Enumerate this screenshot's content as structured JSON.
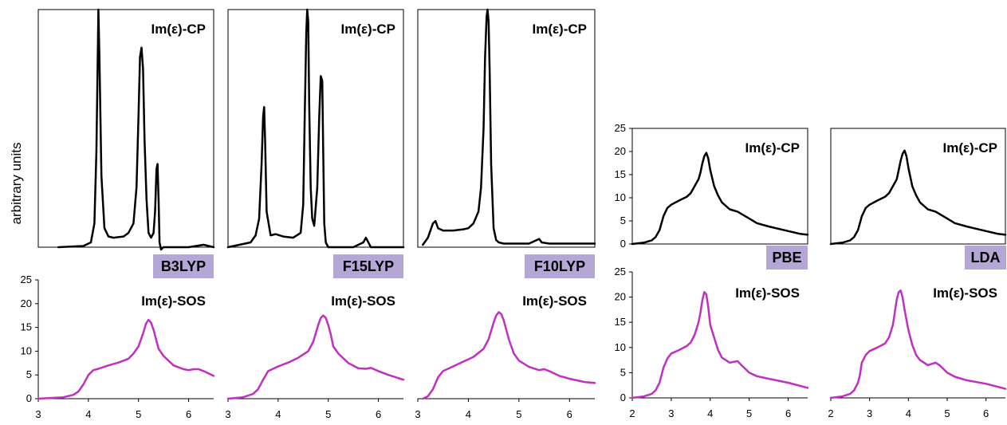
{
  "ylabel": "arbitrary units",
  "colors": {
    "cp": "#000000",
    "sos": "#c030c0",
    "label_bg": "#b4a7d6"
  },
  "chart_data": [
    {
      "type": "line",
      "title": "Im(ε)-CP",
      "method": "B3LYP",
      "axes": false,
      "xlim": [
        3,
        6.5
      ],
      "ylim": [
        0,
        1
      ],
      "x": [
        3.4,
        3.9,
        4.05,
        4.12,
        4.16,
        4.19,
        4.2,
        4.22,
        4.26,
        4.32,
        4.4,
        4.5,
        4.7,
        4.8,
        4.9,
        4.96,
        5.0,
        5.03,
        5.06,
        5.09,
        5.12,
        5.16,
        5.2,
        5.25,
        5.3,
        5.33,
        5.36,
        5.38,
        5.4,
        5.42,
        5.45,
        5.5,
        6.0,
        6.3,
        6.5
      ],
      "y": [
        0,
        0.005,
        0.02,
        0.1,
        0.4,
        0.85,
        1.0,
        0.8,
        0.3,
        0.08,
        0.045,
        0.04,
        0.045,
        0.06,
        0.1,
        0.25,
        0.55,
        0.8,
        0.84,
        0.75,
        0.45,
        0.2,
        0.06,
        0.04,
        0.06,
        0.15,
        0.33,
        0.35,
        0.2,
        0.02,
        -0.01,
        0,
        0,
        0.01,
        0
      ]
    },
    {
      "type": "line",
      "title": "Im(ε)-CP",
      "method": "F15LYP",
      "axes": false,
      "xlim": [
        3,
        6.5
      ],
      "ylim": [
        0,
        1
      ],
      "x": [
        3.0,
        3.45,
        3.55,
        3.62,
        3.67,
        3.7,
        3.72,
        3.74,
        3.77,
        3.85,
        3.95,
        4.1,
        4.3,
        4.45,
        4.5,
        4.53,
        4.56,
        4.58,
        4.6,
        4.62,
        4.65,
        4.68,
        4.72,
        4.78,
        4.82,
        4.85,
        4.88,
        4.9,
        4.92,
        4.95,
        5.0,
        5.1,
        5.5,
        5.7,
        5.75,
        5.8,
        5.85,
        6.5
      ],
      "y": [
        0,
        0.02,
        0.05,
        0.12,
        0.35,
        0.55,
        0.59,
        0.45,
        0.15,
        0.05,
        0.055,
        0.045,
        0.04,
        0.06,
        0.18,
        0.55,
        0.9,
        1.0,
        0.95,
        0.6,
        0.25,
        0.12,
        0.09,
        0.25,
        0.55,
        0.72,
        0.7,
        0.4,
        0.1,
        0.02,
        0,
        0,
        0,
        0.02,
        0.04,
        0.02,
        0,
        0
      ]
    },
    {
      "type": "line",
      "title": "Im(ε)-CP",
      "method": "F10LYP",
      "axes": false,
      "xlim": [
        3,
        6.5
      ],
      "ylim": [
        0,
        1
      ],
      "x": [
        3.1,
        3.2,
        3.3,
        3.35,
        3.4,
        3.5,
        3.7,
        3.9,
        4.0,
        4.1,
        4.2,
        4.25,
        4.3,
        4.33,
        4.36,
        4.38,
        4.4,
        4.42,
        4.45,
        4.5,
        4.55,
        4.6,
        4.7,
        4.9,
        5.2,
        5.35,
        5.4,
        5.45,
        5.6,
        6.5
      ],
      "y": [
        0.01,
        0.04,
        0.1,
        0.11,
        0.08,
        0.07,
        0.07,
        0.075,
        0.08,
        0.1,
        0.15,
        0.25,
        0.5,
        0.8,
        0.97,
        1.0,
        0.95,
        0.75,
        0.35,
        0.08,
        0.03,
        0.02,
        0.015,
        0.015,
        0.015,
        0.03,
        0.035,
        0.02,
        0.015,
        0.015
      ]
    },
    {
      "type": "line",
      "title": "Im(ε)-CP",
      "method": "PBE",
      "axes": true,
      "xlim": [
        2,
        6.5
      ],
      "ylim": [
        0,
        25
      ],
      "yticks": [
        "0",
        "5",
        "10",
        "15",
        "20",
        "25"
      ],
      "xticks": [],
      "x": [
        2.0,
        2.3,
        2.5,
        2.6,
        2.7,
        2.75,
        2.8,
        2.9,
        3.0,
        3.2,
        3.4,
        3.5,
        3.6,
        3.7,
        3.75,
        3.8,
        3.85,
        3.9,
        3.95,
        4.0,
        4.1,
        4.2,
        4.3,
        4.5,
        4.7,
        4.8,
        5.0,
        5.2,
        5.5,
        6.0,
        6.3,
        6.5
      ],
      "y": [
        0,
        0.3,
        0.8,
        1.5,
        3,
        4.5,
        6,
        7.8,
        8.5,
        9.4,
        10.2,
        11,
        12.5,
        14,
        15.5,
        17.5,
        19,
        19.7,
        18.5,
        16,
        12.5,
        10.5,
        9,
        7.5,
        7,
        6.5,
        5.5,
        4.5,
        3.8,
        2.8,
        2.2,
        2
      ]
    },
    {
      "type": "line",
      "title": "Im(ε)-CP",
      "method": "LDA",
      "axes": false,
      "xlim": [
        2,
        6.5
      ],
      "ylim": [
        0,
        25
      ],
      "x": [
        2.0,
        2.3,
        2.5,
        2.6,
        2.7,
        2.75,
        2.8,
        2.9,
        3.0,
        3.2,
        3.4,
        3.5,
        3.6,
        3.7,
        3.75,
        3.8,
        3.85,
        3.9,
        3.95,
        4.0,
        4.1,
        4.2,
        4.3,
        4.5,
        4.7,
        4.8,
        5.0,
        5.2,
        5.5,
        6.0,
        6.3,
        6.5
      ],
      "y": [
        0,
        0.3,
        0.8,
        1.5,
        3,
        4.5,
        6,
        7.8,
        8.5,
        9.4,
        10.2,
        11,
        12.5,
        14,
        16,
        18,
        19.5,
        20.2,
        19,
        16.5,
        12.5,
        10.5,
        9,
        7.5,
        7,
        6.5,
        5.5,
        4.5,
        3.8,
        2.8,
        2.2,
        2
      ]
    },
    {
      "type": "line",
      "title": "Im(ε)-SOS",
      "axes": true,
      "xlim": [
        3,
        6.5
      ],
      "ylim": [
        0,
        25
      ],
      "yticks": [
        "0",
        "5",
        "10",
        "15",
        "20",
        "25"
      ],
      "xticks": [
        "3",
        "4",
        "5",
        "6"
      ],
      "x": [
        3.0,
        3.5,
        3.7,
        3.8,
        3.9,
        4.0,
        4.1,
        4.2,
        4.4,
        4.6,
        4.8,
        4.9,
        5.0,
        5.1,
        5.15,
        5.2,
        5.25,
        5.3,
        5.35,
        5.4,
        5.5,
        5.7,
        5.9,
        6.0,
        6.1,
        6.2,
        6.3,
        6.5
      ],
      "y": [
        0,
        0.3,
        0.8,
        1.5,
        3,
        5,
        6,
        6.3,
        7,
        7.6,
        8.4,
        9.5,
        11,
        14,
        15.8,
        16.6,
        16,
        14.5,
        12.5,
        10.5,
        9,
        7,
        6.2,
        6,
        6.2,
        6.2,
        5.8,
        4.8
      ]
    },
    {
      "type": "line",
      "title": "Im(ε)-SOS",
      "axes": false,
      "xlim": [
        3,
        6.5
      ],
      "ylim": [
        0,
        25
      ],
      "xticks": [
        "3",
        "4",
        "5",
        "6"
      ],
      "x": [
        3.0,
        3.3,
        3.5,
        3.6,
        3.7,
        3.8,
        4.0,
        4.2,
        4.4,
        4.6,
        4.7,
        4.8,
        4.85,
        4.9,
        4.95,
        5.0,
        5.05,
        5.1,
        5.2,
        5.4,
        5.6,
        5.75,
        5.85,
        6.0,
        6.2,
        6.5
      ],
      "y": [
        0,
        0.3,
        1,
        2,
        4,
        5.8,
        6.8,
        7.6,
        8.6,
        10,
        12,
        15.5,
        17,
        17.5,
        17,
        15.5,
        13.5,
        11,
        9.5,
        7.5,
        6.4,
        6.3,
        6.5,
        5.8,
        5,
        4
      ]
    },
    {
      "type": "line",
      "title": "Im(ε)-SOS",
      "axes": false,
      "xlim": [
        3,
        6.5
      ],
      "ylim": [
        0,
        25
      ],
      "xticks": [
        "3",
        "4",
        "5",
        "6"
      ],
      "x": [
        3.1,
        3.2,
        3.3,
        3.4,
        3.5,
        3.7,
        3.9,
        4.1,
        4.3,
        4.4,
        4.5,
        4.55,
        4.6,
        4.65,
        4.7,
        4.8,
        4.9,
        5.0,
        5.2,
        5.4,
        5.5,
        5.6,
        5.8,
        6.0,
        6.3,
        6.5
      ],
      "y": [
        0,
        0.5,
        2,
        4.5,
        5.8,
        6.8,
        7.8,
        8.8,
        10.5,
        12.5,
        16,
        17.5,
        18.2,
        17.8,
        16.5,
        12.5,
        9.5,
        8,
        6.7,
        6,
        6.2,
        5.8,
        4.8,
        4.2,
        3.5,
        3.3
      ]
    },
    {
      "type": "line",
      "title": "Im(ε)-SOS",
      "axes": true,
      "xlim": [
        2,
        6.5
      ],
      "ylim": [
        0,
        25
      ],
      "yticks": [
        "0",
        "5",
        "10",
        "15",
        "20",
        "25"
      ],
      "xticks": [
        "2",
        "3",
        "4",
        "5",
        "6"
      ],
      "x": [
        2.0,
        2.3,
        2.5,
        2.6,
        2.7,
        2.75,
        2.8,
        2.9,
        3.0,
        3.2,
        3.4,
        3.5,
        3.6,
        3.7,
        3.75,
        3.8,
        3.85,
        3.9,
        3.95,
        4.0,
        4.1,
        4.2,
        4.3,
        4.5,
        4.7,
        4.8,
        5.0,
        5.2,
        5.5,
        6.0,
        6.3,
        6.5
      ],
      "y": [
        0,
        0.3,
        0.8,
        1.5,
        3,
        4.5,
        6,
        7.8,
        8.8,
        9.5,
        10.3,
        11,
        12.5,
        15,
        17,
        19.5,
        21,
        20.5,
        18,
        14.5,
        12,
        9.5,
        8,
        7,
        7.3,
        6.5,
        5,
        4.3,
        3.8,
        3,
        2.4,
        2
      ]
    },
    {
      "type": "line",
      "title": "Im(ε)-SOS",
      "axes": false,
      "xlim": [
        2,
        6.5
      ],
      "ylim": [
        0,
        25
      ],
      "xticks": [
        "2",
        "3",
        "4",
        "5",
        "6"
      ],
      "x": [
        2.0,
        2.3,
        2.5,
        2.6,
        2.7,
        2.75,
        2.8,
        2.9,
        3.0,
        3.2,
        3.4,
        3.5,
        3.6,
        3.65,
        3.7,
        3.75,
        3.8,
        3.85,
        3.9,
        4.0,
        4.1,
        4.2,
        4.3,
        4.5,
        4.7,
        4.8,
        5.0,
        5.2,
        5.5,
        6.0,
        6.3,
        6.5
      ],
      "y": [
        0,
        0.3,
        0.8,
        1.5,
        3,
        4.5,
        7,
        8.5,
        9.3,
        10,
        10.8,
        12,
        14.5,
        17,
        19.5,
        21,
        21.3,
        20,
        17.5,
        13.5,
        10.5,
        8.5,
        7.5,
        6.5,
        7,
        6.5,
        5,
        4.2,
        3.5,
        2.8,
        2.2,
        1.8
      ]
    }
  ]
}
